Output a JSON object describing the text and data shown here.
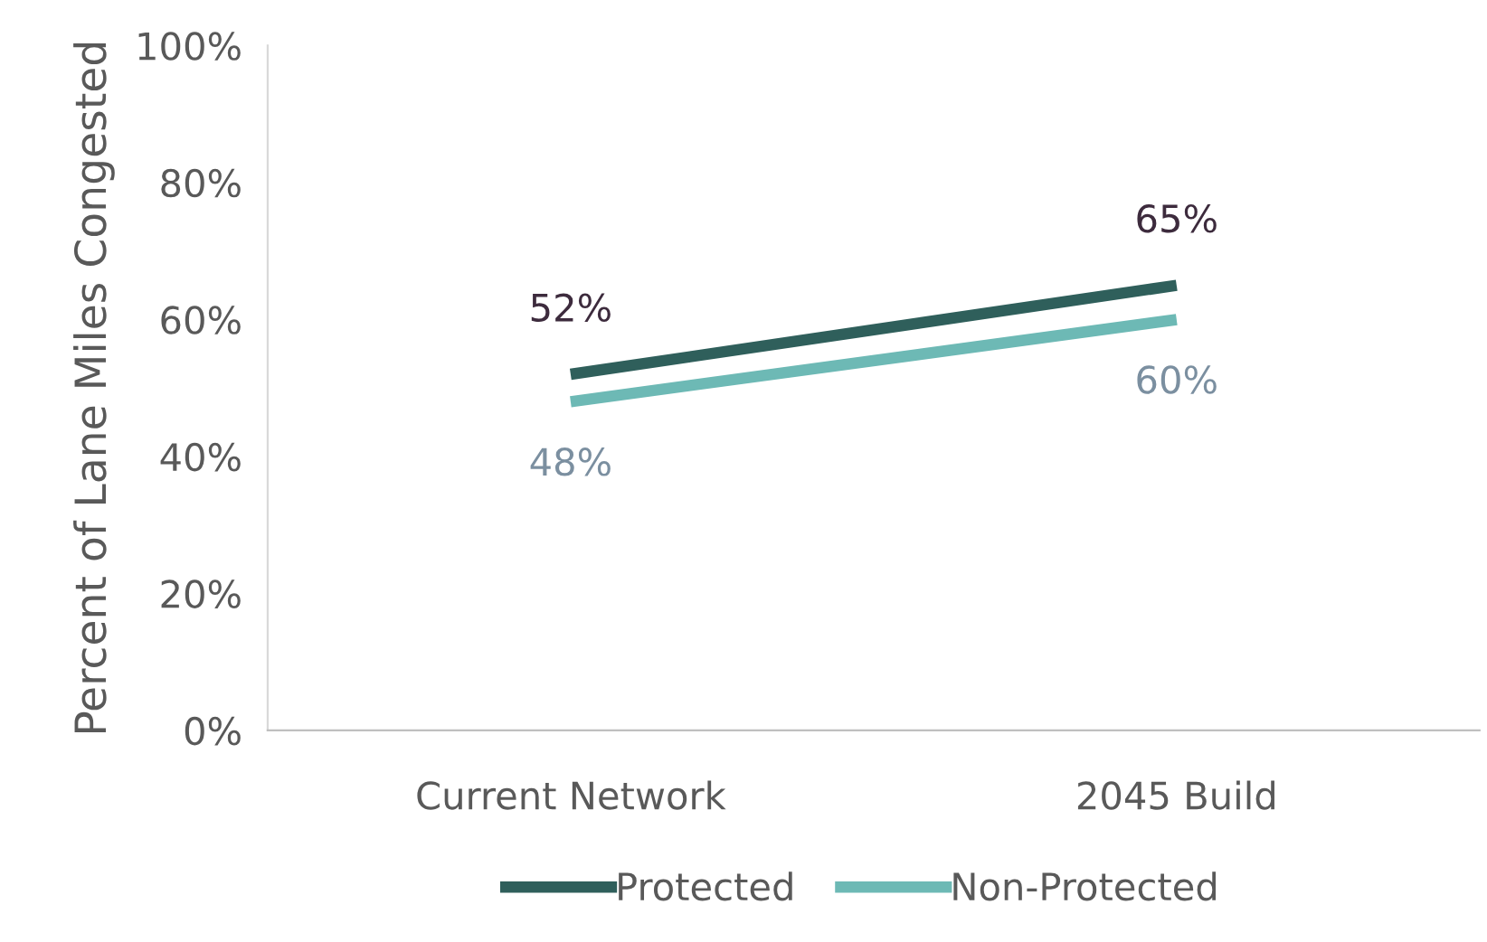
{
  "chart_data": {
    "type": "line",
    "ylabel": "Percent of Lane Miles Congested",
    "categories": [
      "Current Network",
      "2045 Build"
    ],
    "series": [
      {
        "name": "Protected",
        "color": "#2f5f5b",
        "values": [
          52,
          65
        ],
        "value_labels": [
          "52%",
          "65%"
        ]
      },
      {
        "name": "Non-Protected",
        "color": "#6db9b5",
        "values": [
          48,
          60
        ],
        "value_labels": [
          "48%",
          "60%"
        ]
      }
    ],
    "ylim": [
      0,
      100
    ],
    "yticks": [
      {
        "value": 0,
        "label": "0%"
      },
      {
        "value": 20,
        "label": "20%"
      },
      {
        "value": 40,
        "label": "40%"
      },
      {
        "value": 60,
        "label": "60%"
      },
      {
        "value": 80,
        "label": "80%"
      },
      {
        "value": 100,
        "label": "100%"
      }
    ],
    "grid": false,
    "legend": "bottom",
    "marker": "none",
    "line_style": "solid"
  }
}
